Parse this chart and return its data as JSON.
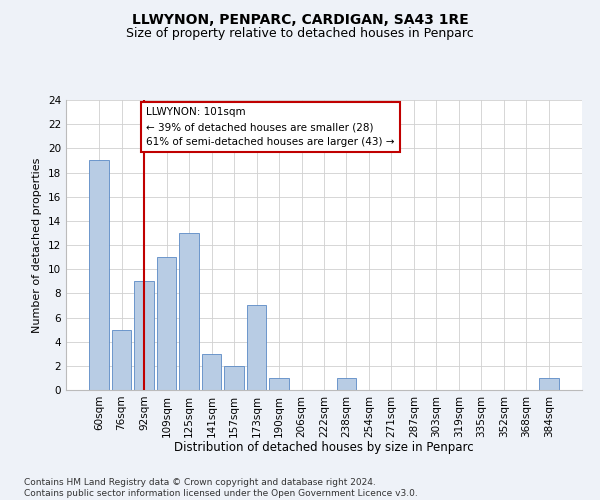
{
  "title": "LLWYNON, PENPARC, CARDIGAN, SA43 1RE",
  "subtitle": "Size of property relative to detached houses in Penparc",
  "xlabel": "Distribution of detached houses by size in Penparc",
  "ylabel": "Number of detached properties",
  "categories": [
    "60sqm",
    "76sqm",
    "92sqm",
    "109sqm",
    "125sqm",
    "141sqm",
    "157sqm",
    "173sqm",
    "190sqm",
    "206sqm",
    "222sqm",
    "238sqm",
    "254sqm",
    "271sqm",
    "287sqm",
    "303sqm",
    "319sqm",
    "335sqm",
    "352sqm",
    "368sqm",
    "384sqm"
  ],
  "values": [
    19,
    5,
    9,
    11,
    13,
    3,
    2,
    7,
    1,
    0,
    0,
    1,
    0,
    0,
    0,
    0,
    0,
    0,
    0,
    0,
    1
  ],
  "bar_color": "#b8cce4",
  "bar_edgecolor": "#5b8ac5",
  "ylim": [
    0,
    24
  ],
  "yticks": [
    0,
    2,
    4,
    6,
    8,
    10,
    12,
    14,
    16,
    18,
    20,
    22,
    24
  ],
  "vline_x": 2,
  "vline_color": "#c00000",
  "annotation_box_text": "LLWYNON: 101sqm\n← 39% of detached houses are smaller (28)\n61% of semi-detached houses are larger (43) →",
  "footnote": "Contains HM Land Registry data © Crown copyright and database right 2024.\nContains public sector information licensed under the Open Government Licence v3.0.",
  "background_color": "#eef2f8",
  "plot_background_color": "#ffffff",
  "grid_color": "#d0d0d0",
  "title_fontsize": 10,
  "subtitle_fontsize": 9,
  "xlabel_fontsize": 8.5,
  "ylabel_fontsize": 8,
  "tick_fontsize": 7.5,
  "annotation_fontsize": 7.5,
  "footnote_fontsize": 6.5
}
